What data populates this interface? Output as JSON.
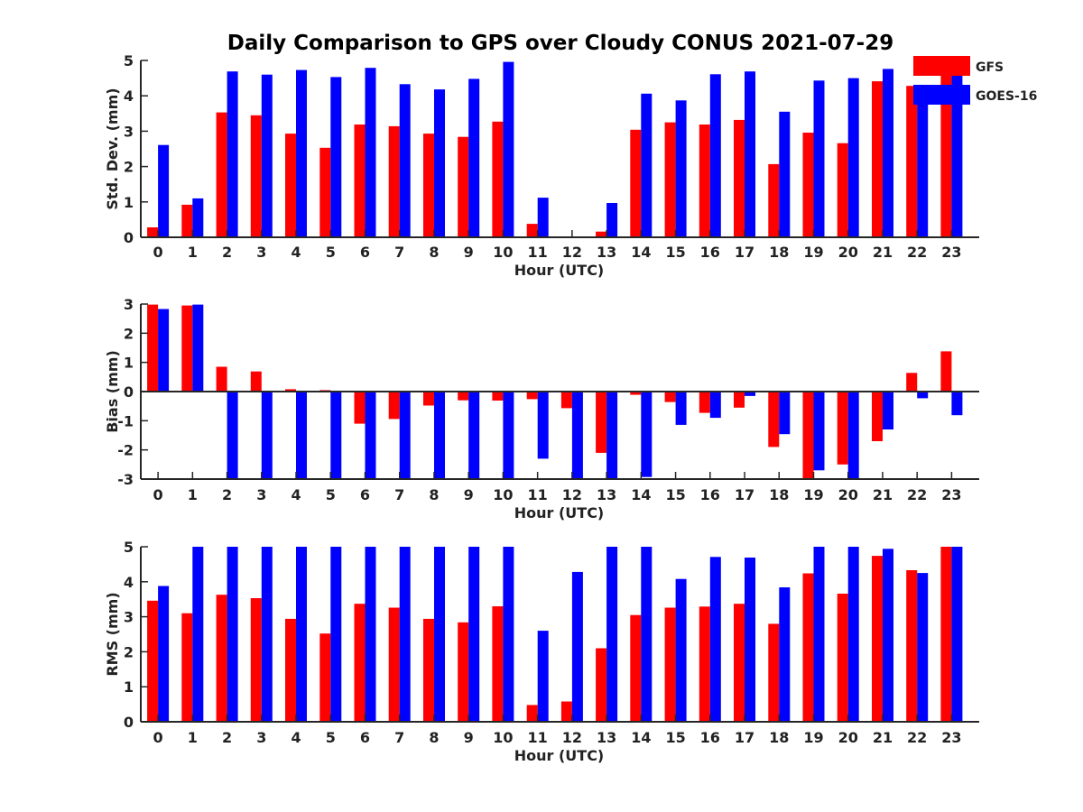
{
  "title": "Daily Comparison to GPS over Cloudy CONUS 2021-07-29",
  "colors": {
    "GFS": "#ff0000",
    "GOES-16": "#0000ff",
    "axis": "#262626"
  },
  "legend": {
    "placement": "top-right",
    "entries": [
      "GFS",
      "GOES-16"
    ]
  },
  "chart_data": [
    {
      "type": "bar",
      "xlabel": "Hour (UTC)",
      "ylabel": "Std. Dev. (mm)",
      "ylim": [
        0,
        5
      ],
      "yticks": [
        0,
        1,
        2,
        3,
        4,
        5
      ],
      "grid": false,
      "categories": [
        "0",
        "1",
        "2",
        "3",
        "4",
        "5",
        "6",
        "7",
        "8",
        "9",
        "10",
        "11",
        "12",
        "13",
        "14",
        "15",
        "16",
        "17",
        "18",
        "19",
        "20",
        "21",
        "22",
        "23"
      ],
      "series": [
        {
          "name": "GFS",
          "values": [
            0.28,
            0.92,
            3.53,
            3.45,
            2.93,
            2.53,
            3.19,
            3.14,
            2.93,
            2.84,
            3.27,
            0.38,
            0,
            0.16,
            3.04,
            3.25,
            3.19,
            3.32,
            2.07,
            2.96,
            2.66,
            4.41,
            4.28,
            4.9
          ]
        },
        {
          "name": "GOES-16",
          "values": [
            2.61,
            1.1,
            4.69,
            4.6,
            4.73,
            4.53,
            4.79,
            4.33,
            4.18,
            4.48,
            4.96,
            1.12,
            0,
            0.97,
            4.06,
            3.87,
            4.61,
            4.69,
            3.55,
            4.43,
            4.5,
            4.76,
            4.3,
            4.65
          ]
        }
      ]
    },
    {
      "type": "bar",
      "xlabel": "Hour (UTC)",
      "ylabel": "Bias (mm)",
      "ylim": [
        -3,
        3
      ],
      "yticks": [
        -3,
        -2,
        -1,
        0,
        1,
        2,
        3
      ],
      "grid": false,
      "categories": [
        "0",
        "1",
        "2",
        "3",
        "4",
        "5",
        "6",
        "7",
        "8",
        "9",
        "10",
        "11",
        "12",
        "13",
        "14",
        "15",
        "16",
        "17",
        "18",
        "19",
        "20",
        "21",
        "22",
        "23"
      ],
      "series": [
        {
          "name": "GFS",
          "values": [
            2.98,
            2.95,
            0.85,
            0.69,
            0.08,
            0.05,
            -1.1,
            -0.94,
            -0.48,
            -0.3,
            -0.31,
            -0.26,
            -0.57,
            -2.1,
            -0.11,
            -0.36,
            -0.73,
            -0.55,
            -1.9,
            -3.0,
            -2.5,
            -1.7,
            0.64,
            1.38
          ]
        },
        {
          "name": "GOES-16",
          "values": [
            2.83,
            2.98,
            -3.0,
            -3.0,
            -3.0,
            -3.0,
            -3.0,
            -3.0,
            -3.0,
            -3.0,
            -3.0,
            -2.3,
            -3.0,
            -3.0,
            -2.93,
            -1.14,
            -0.9,
            -0.15,
            -1.46,
            -2.7,
            -3.0,
            -1.3,
            -0.23,
            -0.81
          ]
        }
      ]
    },
    {
      "type": "bar",
      "xlabel": "Hour (UTC)",
      "ylabel": "RMS (mm)",
      "ylim": [
        0,
        5
      ],
      "yticks": [
        0,
        1,
        2,
        3,
        4,
        5
      ],
      "grid": false,
      "categories": [
        "0",
        "1",
        "2",
        "3",
        "4",
        "5",
        "6",
        "7",
        "8",
        "9",
        "10",
        "11",
        "12",
        "13",
        "14",
        "15",
        "16",
        "17",
        "18",
        "19",
        "20",
        "21",
        "22",
        "23"
      ],
      "series": [
        {
          "name": "GFS",
          "values": [
            3.46,
            3.1,
            3.63,
            3.53,
            2.94,
            2.52,
            3.37,
            3.26,
            2.94,
            2.84,
            3.3,
            0.48,
            0.58,
            2.1,
            3.05,
            3.26,
            3.29,
            3.37,
            2.8,
            4.24,
            3.66,
            4.74,
            4.33,
            5.0
          ]
        },
        {
          "name": "GOES-16",
          "values": [
            3.88,
            5.0,
            5.0,
            5.0,
            5.0,
            5.0,
            5.0,
            5.0,
            5.0,
            5.0,
            5.0,
            2.6,
            4.28,
            5.0,
            5.0,
            4.08,
            4.71,
            4.69,
            3.84,
            5.0,
            5.0,
            4.94,
            4.25,
            5.0
          ]
        }
      ]
    }
  ]
}
